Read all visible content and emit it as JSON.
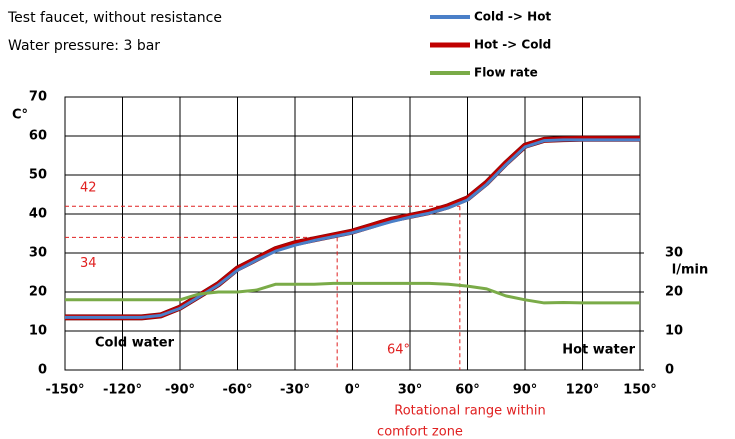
{
  "chart_data": {
    "type": "line",
    "title": "Test faucet, without resistance",
    "subtitle": "Water pressure: 3 bar",
    "ylabel": "C°",
    "y2label": "l/min",
    "x_label": [
      "Rotational range within",
      "comfort zone"
    ],
    "x": [
      -150,
      -140,
      -130,
      -120,
      -110,
      -100,
      -90,
      -80,
      -70,
      -60,
      -50,
      -40,
      -30,
      -20,
      -10,
      0,
      10,
      20,
      30,
      40,
      50,
      60,
      70,
      80,
      90,
      100,
      110,
      120,
      130,
      140,
      150
    ],
    "series": [
      {
        "name": "Cold -> Hot",
        "color": "#4a7fc8",
        "values": [
          13.5,
          13.5,
          13.5,
          13.5,
          13.5,
          14,
          15.8,
          18.8,
          21.8,
          25.6,
          28.2,
          30.5,
          32,
          33.2,
          34.2,
          35.2,
          36.6,
          38,
          39.2,
          40.2,
          41.6,
          43.6,
          47.6,
          52.6,
          57.2,
          58.8,
          59,
          59,
          59,
          59,
          59
        ]
      },
      {
        "name": "Hot -> Cold",
        "color": "#c00000",
        "values": [
          13.5,
          13.5,
          13.5,
          13.5,
          13.5,
          14,
          16,
          19,
          22,
          26,
          28.5,
          31,
          32.5,
          33.5,
          34.5,
          35.5,
          37,
          38.5,
          39.5,
          40.5,
          42,
          44,
          48,
          53,
          57.5,
          59,
          59.2,
          59.3,
          59.3,
          59.3,
          59.3
        ]
      },
      {
        "name": "Flow rate",
        "color": "#7aab48",
        "axis": "y2",
        "values": [
          18,
          18,
          18,
          18,
          18,
          18,
          18,
          19.5,
          20,
          20,
          20.5,
          22,
          22,
          22,
          22.2,
          22.2,
          22.2,
          22.2,
          22.2,
          22.2,
          22,
          21.5,
          20.8,
          19,
          18,
          17.2,
          17.3,
          17.2,
          17.2,
          17.2,
          17.2
        ]
      }
    ],
    "xlim": [
      -150,
      150
    ],
    "xticks": [
      {
        "value": -150,
        "label": "-150°"
      },
      {
        "value": -120,
        "label": "-120°"
      },
      {
        "value": -90,
        "label": "-90°"
      },
      {
        "value": -60,
        "label": "-60°"
      },
      {
        "value": -30,
        "label": "-30°"
      },
      {
        "value": 0,
        "label": "0°"
      },
      {
        "value": 30,
        "label": "30°"
      },
      {
        "value": 60,
        "label": "60°"
      },
      {
        "value": 90,
        "label": "90°"
      },
      {
        "value": 120,
        "label": "120°"
      },
      {
        "value": 150,
        "label": "150°"
      }
    ],
    "ylim": [
      0,
      70
    ],
    "yticks": [
      0,
      10,
      20,
      30,
      40,
      50,
      60,
      70
    ],
    "y2lim": [
      0,
      70
    ],
    "y2ticks": [
      0,
      10,
      20,
      30
    ],
    "grid": true,
    "reference_lines": [
      42,
      34
    ],
    "comfort_range": {
      "x": [
        -8,
        56
      ],
      "label": "64°"
    },
    "annotations": [
      "Cold water",
      "Hot water"
    ]
  }
}
